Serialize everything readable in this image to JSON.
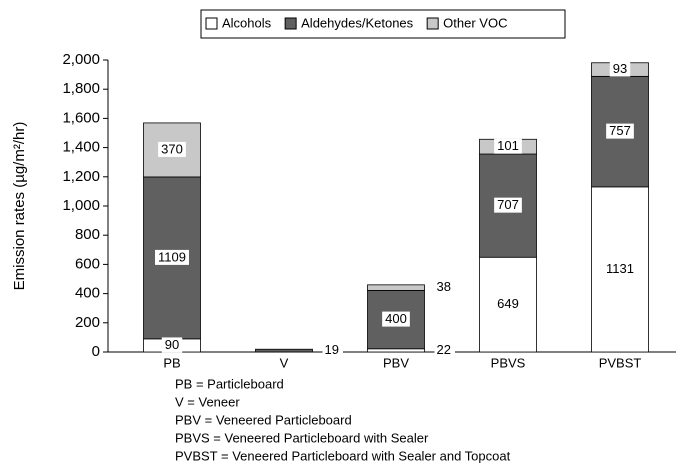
{
  "chart_data": {
    "type": "stacked_bar",
    "y_label": "Emission rates (µg/m²/hr)",
    "categories": [
      "PB",
      "V",
      "PBV",
      "PBVS",
      "PVBST"
    ],
    "series": [
      {
        "name": "Alcohols",
        "color": "#ffffff",
        "values": [
          90,
          null,
          22,
          649,
          1131
        ]
      },
      {
        "name": "Aldehydes/Ketones",
        "color": "#606060",
        "values": [
          1109,
          19,
          400,
          707,
          757
        ]
      },
      {
        "name": "Other VOC",
        "color": "#c8c8c8",
        "values": [
          370,
          null,
          38,
          101,
          93
        ]
      }
    ],
    "ylim": [
      0,
      2000
    ],
    "yticks": [
      0,
      200,
      400,
      600,
      800,
      {
        "value": 1000,
        "label": "1,000"
      },
      {
        "value": 1200,
        "label": "1,200"
      },
      {
        "value": 1400,
        "label": "1,400"
      },
      {
        "value": 1600,
        "label": "1,600"
      },
      {
        "value": 1800,
        "label": "1,800"
      },
      {
        "value": 2000,
        "label": "2,000"
      }
    ],
    "legend": "top",
    "notes": [
      "PB = Particleboard",
      "V = Veneer",
      "PBV = Veneered Particleboard",
      "PBVS = Veneered Particleboard with Sealer",
      "PVBST = Veneered Particleboard with Sealer and Topcoat"
    ]
  }
}
